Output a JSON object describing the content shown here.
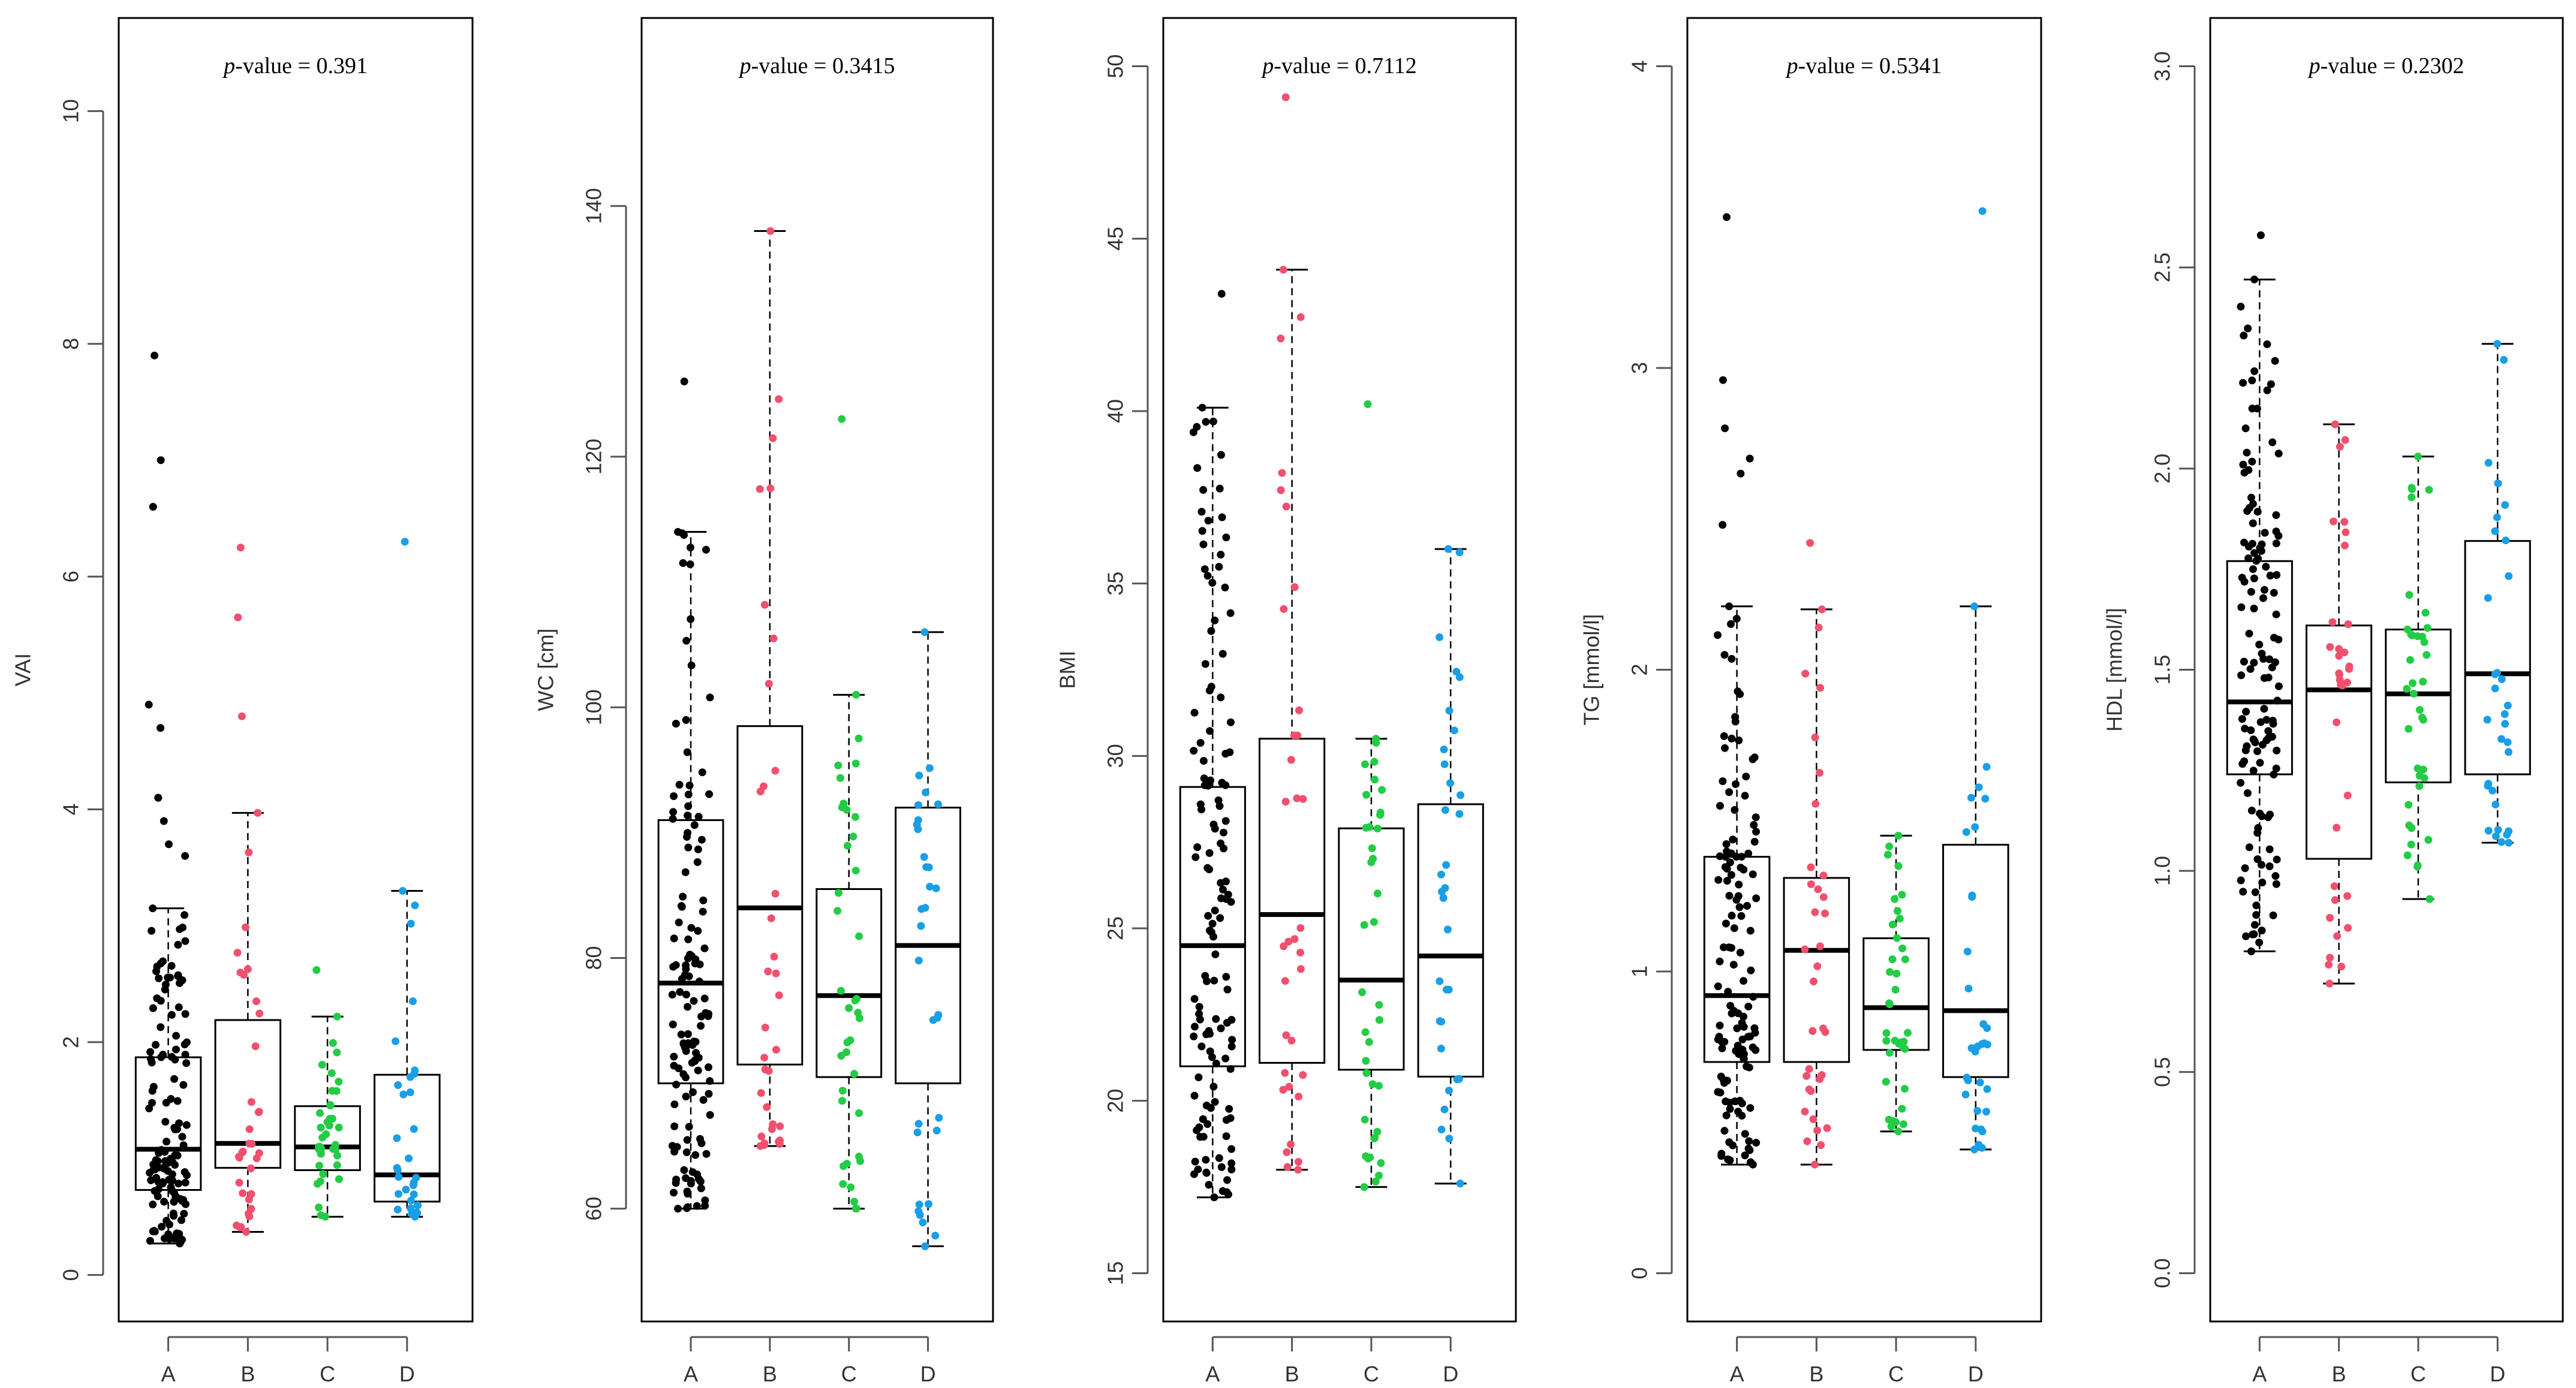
{
  "colors": {
    "A": "#000000",
    "B": "#f0506e",
    "C": "#22cc44",
    "D": "#1a9ee6",
    "frame": "#000000",
    "axis": "#555555"
  },
  "chart_data": [
    {
      "type": "box",
      "title_prefix": "p",
      "title_suffix": "-value = 0.391",
      "ylabel": "VAI",
      "ylim": [
        -0.4,
        10.8
      ],
      "yticks": [
        0,
        2,
        4,
        6,
        8,
        10
      ],
      "ytick_labels": [
        "0",
        "2",
        "4",
        "6",
        "8",
        "10"
      ],
      "categories": [
        "A",
        "B",
        "C",
        "D"
      ],
      "boxes": [
        {
          "group": "A",
          "whisker_low": 0.27,
          "q1": 0.73,
          "median": 1.08,
          "q3": 1.87,
          "whisker_high": 3.15,
          "outliers": [
            3.6,
            3.7,
            3.9,
            4.1,
            4.1,
            4.7,
            4.9,
            6.6,
            7.0,
            7.9
          ],
          "n": 130,
          "spread": 0.2
        },
        {
          "group": "B",
          "whisker_low": 0.37,
          "q1": 0.92,
          "median": 1.13,
          "q3": 2.19,
          "whisker_high": 3.97,
          "outliers": [
            4.8,
            5.65,
            6.25
          ],
          "n": 32,
          "spread": 0.12
        },
        {
          "group": "C",
          "whisker_low": 0.5,
          "q1": 0.9,
          "median": 1.1,
          "q3": 1.45,
          "whisker_high": 2.22,
          "outliers": [
            2.62
          ],
          "n": 36,
          "spread": 0.12
        },
        {
          "group": "D",
          "whisker_low": 0.5,
          "q1": 0.63,
          "median": 0.86,
          "q3": 1.72,
          "whisker_high": 3.3,
          "outliers": [
            6.3
          ],
          "n": 30,
          "spread": 0.12
        }
      ]
    },
    {
      "type": "box",
      "title_prefix": "p",
      "title_suffix": "-value = 0.3415",
      "ylabel": "WC [cm]",
      "ylim": [
        51,
        155
      ],
      "yticks": [
        60,
        80,
        100,
        120,
        140
      ],
      "ytick_labels": [
        "60",
        "80",
        "100",
        "120",
        "140"
      ],
      "categories": [
        "A",
        "B",
        "C",
        "D"
      ],
      "boxes": [
        {
          "group": "A",
          "whisker_low": 60,
          "q1": 70,
          "median": 78,
          "q3": 91,
          "whisker_high": 114,
          "outliers": [
            126
          ],
          "n": 130,
          "spread": 0.2
        },
        {
          "group": "B",
          "whisker_low": 65,
          "q1": 71.5,
          "median": 84,
          "q3": 98.5,
          "whisker_high": 138,
          "outliers": [],
          "n": 32,
          "spread": 0.12
        },
        {
          "group": "C",
          "whisker_low": 60,
          "q1": 70.5,
          "median": 77,
          "q3": 85.5,
          "whisker_high": 101,
          "outliers": [
            123
          ],
          "n": 36,
          "spread": 0.12
        },
        {
          "group": "D",
          "whisker_low": 57,
          "q1": 70,
          "median": 81,
          "q3": 92,
          "whisker_high": 106,
          "outliers": [],
          "n": 30,
          "spread": 0.12
        }
      ]
    },
    {
      "type": "box",
      "title_prefix": "p",
      "title_suffix": "-value = 0.7112",
      "ylabel": "BMI",
      "ylim": [
        13.6,
        51.4
      ],
      "yticks": [
        15,
        20,
        25,
        30,
        35,
        40,
        45,
        50
      ],
      "ytick_labels": [
        "15",
        "20",
        "25",
        "30",
        "35",
        "40",
        "45",
        "50"
      ],
      "categories": [
        "A",
        "B",
        "C",
        "D"
      ],
      "boxes": [
        {
          "group": "A",
          "whisker_low": 17.2,
          "q1": 21.0,
          "median": 24.5,
          "q3": 29.1,
          "whisker_high": 40.1,
          "outliers": [
            43.4
          ],
          "n": 130,
          "spread": 0.2
        },
        {
          "group": "B",
          "whisker_low": 18.0,
          "q1": 21.1,
          "median": 25.4,
          "q3": 30.5,
          "whisker_high": 44.1,
          "outliers": [
            49.1
          ],
          "n": 32,
          "spread": 0.12
        },
        {
          "group": "C",
          "whisker_low": 17.5,
          "q1": 20.9,
          "median": 23.5,
          "q3": 27.9,
          "whisker_high": 30.5,
          "outliers": [
            40.2
          ],
          "n": 36,
          "spread": 0.12
        },
        {
          "group": "D",
          "whisker_low": 17.6,
          "q1": 20.7,
          "median": 24.2,
          "q3": 28.6,
          "whisker_high": 36.0,
          "outliers": [],
          "n": 30,
          "spread": 0.12
        }
      ]
    },
    {
      "type": "box",
      "title_prefix": "p",
      "title_suffix": "-value = 0.5341",
      "ylabel": "TG [mmol/l]",
      "ylim": [
        -0.16,
        4.16
      ],
      "yticks": [
        0,
        1,
        2,
        3,
        4
      ],
      "ytick_labels": [
        "0",
        "1",
        "2",
        "3",
        "4"
      ],
      "categories": [
        "A",
        "B",
        "C",
        "D"
      ],
      "boxes": [
        {
          "group": "A",
          "whisker_low": 0.36,
          "q1": 0.7,
          "median": 0.92,
          "q3": 1.38,
          "whisker_high": 2.21,
          "outliers": [
            2.48,
            2.65,
            2.7,
            2.8,
            2.96,
            3.5
          ],
          "n": 130,
          "spread": 0.2
        },
        {
          "group": "B",
          "whisker_low": 0.36,
          "q1": 0.7,
          "median": 1.07,
          "q3": 1.31,
          "whisker_high": 2.2,
          "outliers": [
            2.42
          ],
          "n": 32,
          "spread": 0.12
        },
        {
          "group": "C",
          "whisker_low": 0.47,
          "q1": 0.74,
          "median": 0.88,
          "q3": 1.11,
          "whisker_high": 1.45,
          "outliers": [],
          "n": 36,
          "spread": 0.12
        },
        {
          "group": "D",
          "whisker_low": 0.41,
          "q1": 0.65,
          "median": 0.87,
          "q3": 1.42,
          "whisker_high": 2.21,
          "outliers": [
            3.52
          ],
          "n": 30,
          "spread": 0.12
        }
      ]
    },
    {
      "type": "box",
      "title_prefix": "p",
      "title_suffix": "-value = 0.2302",
      "ylabel": "HDL [mmol/l]",
      "ylim": [
        -0.12,
        3.12
      ],
      "yticks": [
        0.0,
        0.5,
        1.0,
        1.5,
        2.0,
        2.5,
        3.0
      ],
      "ytick_labels": [
        "0.0",
        "0.5",
        "1.0",
        "1.5",
        "2.0",
        "2.5",
        "3.0"
      ],
      "categories": [
        "A",
        "B",
        "C",
        "D"
      ],
      "boxes": [
        {
          "group": "A",
          "whisker_low": 0.8,
          "q1": 1.24,
          "median": 1.42,
          "q3": 1.77,
          "whisker_high": 2.47,
          "outliers": [
            2.58
          ],
          "n": 130,
          "spread": 0.2
        },
        {
          "group": "B",
          "whisker_low": 0.72,
          "q1": 1.03,
          "median": 1.45,
          "q3": 1.61,
          "whisker_high": 2.11,
          "outliers": [],
          "n": 32,
          "spread": 0.12
        },
        {
          "group": "C",
          "whisker_low": 0.93,
          "q1": 1.22,
          "median": 1.44,
          "q3": 1.6,
          "whisker_high": 2.03,
          "outliers": [],
          "n": 36,
          "spread": 0.12
        },
        {
          "group": "D",
          "whisker_low": 1.07,
          "q1": 1.24,
          "median": 1.49,
          "q3": 1.82,
          "whisker_high": 2.31,
          "outliers": [],
          "n": 30,
          "spread": 0.12
        }
      ]
    }
  ]
}
